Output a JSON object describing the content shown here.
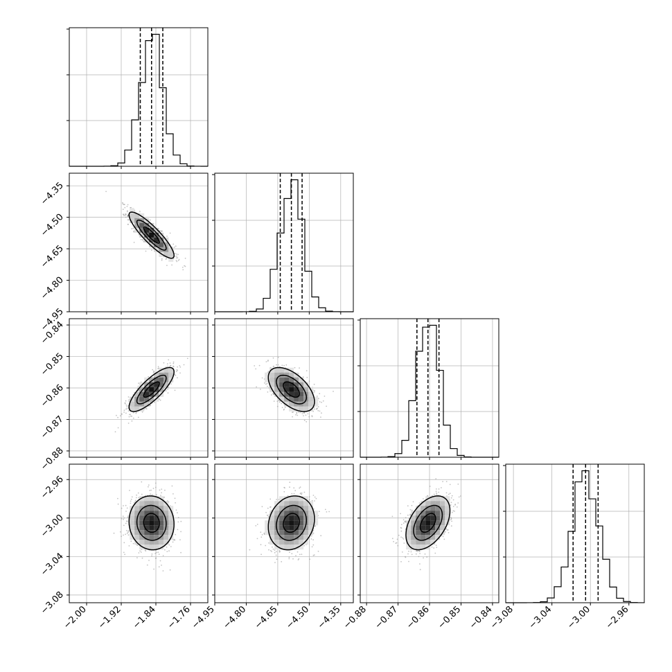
{
  "chart_data": {
    "type": "corner",
    "params": [
      {
        "range": [
          -2.04,
          -1.72
        ],
        "ticks": [
          "−2.00",
          "−1.92",
          "−1.84",
          "−1.76"
        ],
        "tick_values": [
          -2.0,
          -1.92,
          -1.84,
          -1.76
        ],
        "mean": -1.85,
        "sd": 0.026,
        "quantiles": [
          -1.876,
          -1.85,
          -1.824
        ]
      },
      {
        "range": [
          -4.95,
          -4.29
        ],
        "ticks": [
          "−4.95",
          "−4.80",
          "−4.65",
          "−4.50",
          "−4.35"
        ],
        "tick_values": [
          -4.95,
          -4.8,
          -4.65,
          -4.5,
          -4.35
        ],
        "mean": -4.585,
        "sd": 0.055,
        "quantiles": [
          -4.638,
          -4.585,
          -4.534
        ]
      },
      {
        "range": [
          -0.882,
          -0.838
        ],
        "ticks": [
          "−0.88",
          "−0.87",
          "−0.86",
          "−0.85",
          "−0.84"
        ],
        "tick_values": [
          -0.88,
          -0.87,
          -0.86,
          -0.85,
          -0.84
        ],
        "mean": -0.8605,
        "sd": 0.0035,
        "quantiles": [
          -0.864,
          -0.8605,
          -0.857
        ]
      },
      {
        "range": [
          -3.088,
          -2.944
        ],
        "ticks": [
          "−3.08",
          "−3.04",
          "−3.00",
          "−2.96"
        ],
        "tick_values": [
          -3.08,
          -3.04,
          -3.0,
          -2.96
        ],
        "mean": -3.005,
        "sd": 0.014,
        "quantiles": [
          -3.018,
          -3.005,
          -2.992
        ]
      }
    ],
    "correlations": [
      {
        "i": 1,
        "j": 0,
        "r": -0.88
      },
      {
        "i": 2,
        "j": 0,
        "r": 0.8
      },
      {
        "i": 2,
        "j": 1,
        "r": -0.55
      },
      {
        "i": 3,
        "j": 0,
        "r": -0.05
      },
      {
        "i": 3,
        "j": 1,
        "r": 0.15
      },
      {
        "i": 3,
        "j": 2,
        "r": 0.45
      }
    ],
    "histogram_bins": 20,
    "grid": true,
    "quantile_lines": "dashed",
    "colors": {
      "line": "#000000",
      "points": "#9a9a9a",
      "grid": "#b0b0b0"
    }
  }
}
